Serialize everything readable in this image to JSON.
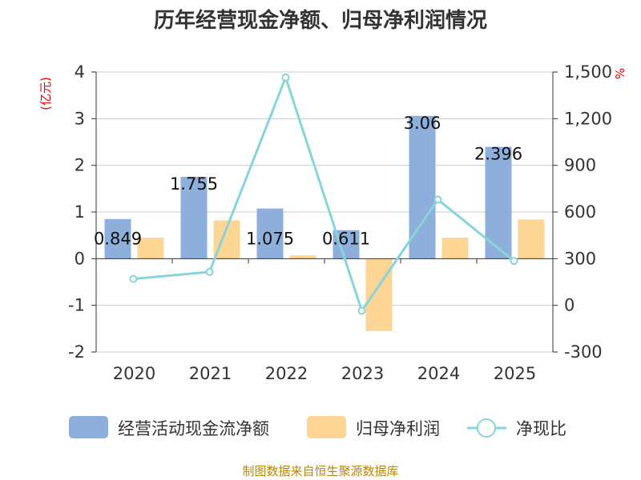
{
  "title": "历年经营现金净额、归母净利润情况",
  "source": "制图数据来自恒生聚源数据库",
  "colors": {
    "cash": "#8eaedc",
    "profit": "#fdd594",
    "ratio": "#88d4d8",
    "axis": "#333333",
    "grid": "#cccccc",
    "unit": "#e8000b"
  },
  "chart_data": {
    "type": "bar",
    "categories": [
      "2020",
      "2021",
      "2022",
      "2023",
      "2024",
      "2025"
    ],
    "left_axis": {
      "unit": "(亿元)",
      "ylim": [
        -2,
        4
      ],
      "ticks": [
        "-2",
        "-1",
        "0",
        "1",
        "2",
        "3",
        "4"
      ]
    },
    "right_axis": {
      "unit": "%",
      "ylim": [
        -300,
        1500
      ],
      "ticks": [
        "-300",
        "0",
        "300",
        "600",
        "900",
        "1,200",
        "1,500"
      ]
    },
    "grid": true,
    "legend_position": "bottom",
    "series": [
      {
        "name": "经营活动现金流净额",
        "type": "bar",
        "axis": "left",
        "values": [
          0.849,
          1.755,
          1.075,
          0.611,
          3.06,
          2.396
        ],
        "labels": [
          "0.849",
          "1.755",
          "1.075",
          "0.611",
          "3.06",
          "2.396"
        ]
      },
      {
        "name": "归母净利润",
        "type": "bar",
        "axis": "left",
        "values": [
          0.45,
          0.82,
          0.07,
          -1.55,
          0.45,
          0.84
        ]
      },
      {
        "name": "净现比",
        "type": "line",
        "axis": "right",
        "values": [
          170,
          215,
          1465,
          -35,
          680,
          285
        ]
      }
    ]
  }
}
